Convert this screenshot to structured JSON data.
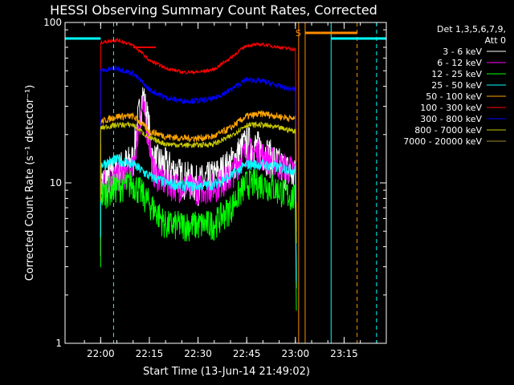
{
  "chart_data": {
    "type": "line",
    "title": "HESSI Observing Summary Count Rates, Corrected",
    "xlabel": "Start Time (13-Jun-14 21:49:02)",
    "ylabel": "Corrected Count Rate (s⁻¹ detector⁻¹)",
    "y_scale": "log",
    "ylim": [
      1,
      100
    ],
    "xlim": [
      "21:49:02",
      "23:28"
    ],
    "x_ticks": [
      "22:00",
      "22:15",
      "22:30",
      "22:45",
      "23:00",
      "23:15"
    ],
    "y_ticks": [
      "1",
      "10",
      "100"
    ],
    "legend_header": [
      "Det 1,3,5,6,7,9,",
      "Att 0"
    ],
    "legend_position": "top-right-outside",
    "series": [
      {
        "name": "3 - 6 keV",
        "color": "#ffffff",
        "x": [
          "22:00",
          "22:05",
          "22:10",
          "22:13",
          "22:16",
          "22:20",
          "22:25",
          "22:30",
          "22:35",
          "22:40",
          "22:45",
          "22:50",
          "22:55",
          "23:00"
        ],
        "values": [
          10,
          12,
          14,
          35,
          14,
          13,
          11,
          10,
          11,
          13,
          18,
          16,
          13,
          11
        ]
      },
      {
        "name": "6 - 12 keV",
        "color": "#ff00ff",
        "x": [
          "22:00",
          "22:05",
          "22:10",
          "22:13",
          "22:16",
          "22:20",
          "22:25",
          "22:30",
          "22:35",
          "22:40",
          "22:45",
          "22:50",
          "22:55",
          "23:00"
        ],
        "values": [
          10,
          11,
          12,
          30,
          12,
          10,
          9.5,
          9.3,
          9.5,
          11,
          16,
          15,
          13,
          12
        ]
      },
      {
        "name": "12 - 25 keV",
        "color": "#00ff00",
        "x": [
          "22:00",
          "22:05",
          "22:10",
          "22:15",
          "22:20",
          "22:25",
          "22:30",
          "22:35",
          "22:40",
          "22:45",
          "22:50",
          "22:55",
          "23:00"
        ],
        "values": [
          8.5,
          9.5,
          10,
          7.5,
          5.5,
          5.5,
          5.5,
          5.6,
          7,
          10,
          10,
          9,
          8
        ]
      },
      {
        "name": "25 - 50 keV",
        "color": "#00ffff",
        "x": [
          "22:00",
          "22:05",
          "22:10",
          "22:15",
          "22:20",
          "22:25",
          "22:30",
          "22:35",
          "22:40",
          "22:45",
          "22:50",
          "22:55",
          "23:00"
        ],
        "values": [
          13,
          14,
          13,
          11,
          10,
          9.6,
          9.6,
          9.8,
          11,
          13,
          13,
          12.5,
          12
        ]
      },
      {
        "name": "50 - 100 keV",
        "color": "#ffa500",
        "x": [
          "22:00",
          "22:05",
          "22:10",
          "22:15",
          "22:20",
          "22:25",
          "22:30",
          "22:35",
          "22:40",
          "22:45",
          "22:50",
          "22:55",
          "23:00"
        ],
        "values": [
          24,
          26,
          26,
          21,
          19.5,
          19,
          19,
          19.5,
          22,
          26,
          27,
          26,
          25
        ]
      },
      {
        "name": "100 - 300 keV",
        "color": "#ff0000",
        "x": [
          "22:00",
          "22:05",
          "22:10",
          "22:15",
          "22:20",
          "22:25",
          "22:30",
          "22:35",
          "22:40",
          "22:45",
          "22:50",
          "22:55",
          "23:00"
        ],
        "values": [
          75,
          78,
          72,
          58,
          52,
          49,
          49,
          51,
          60,
          72,
          73,
          70,
          68
        ]
      },
      {
        "name": "300 - 800 keV",
        "color": "#0000ff",
        "x": [
          "22:00",
          "22:05",
          "22:10",
          "22:15",
          "22:20",
          "22:25",
          "22:30",
          "22:35",
          "22:40",
          "22:45",
          "22:50",
          "22:55",
          "23:00"
        ],
        "values": [
          50,
          52,
          48,
          38,
          34,
          32.5,
          32.5,
          33.5,
          38,
          44,
          43,
          40,
          38
        ]
      },
      {
        "name": "800 - 7000 keV",
        "color": "#c8c800",
        "x": [
          "22:00",
          "22:05",
          "22:10",
          "22:15",
          "22:20",
          "22:25",
          "22:30",
          "22:35",
          "22:40",
          "22:45",
          "22:50",
          "22:55",
          "23:00"
        ],
        "values": [
          22,
          23,
          23,
          19,
          17.5,
          17.2,
          17.2,
          17.5,
          19.5,
          23,
          23,
          22,
          21
        ]
      },
      {
        "name": "7000 - 20000 keV",
        "color": "#a08c28",
        "x": [],
        "values": []
      }
    ],
    "flag_label": "S"
  }
}
